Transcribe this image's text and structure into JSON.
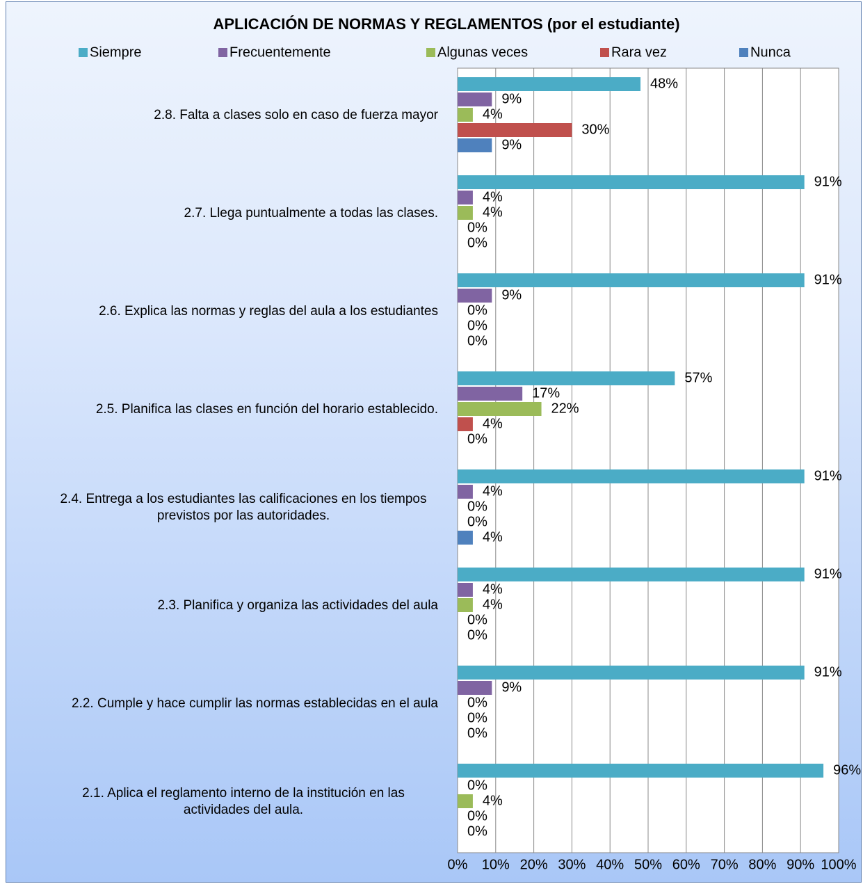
{
  "chart_data": {
    "type": "hbar",
    "title": "APLICACIÓN DE NORMAS Y REGLAMENTOS (por el estudiante)",
    "categories": [
      "2.1.  Aplica el reglamento interno de la institución en las actividades del aula.",
      "2.2.  Cumple y hace cumplir  las normas establecidas en el aula",
      "2.3.  Planifica y organiza las actividades del aula",
      "2.4.  Entrega a los estudiantes las calificaciones en los tiempos previstos por las autoridades.",
      "2.5.  Planifica las clases en función del horario establecido.",
      "2.6.  Explica las normas y reglas del aula a los estudiantes",
      "2.7.  Llega puntualmente a todas las clases.",
      "2.8.  Falta a  clases solo en caso de fuerza mayor"
    ],
    "series": [
      {
        "name": "Siempre",
        "color": "#4bacc6",
        "values": [
          96,
          91,
          91,
          91,
          57,
          91,
          91,
          48
        ],
        "value_labels": [
          "96%",
          "91%",
          "91%",
          "91%",
          "57%",
          "91%",
          "91%",
          "48%"
        ]
      },
      {
        "name": "Frecuentemente",
        "color": "#8064a2",
        "values": [
          0,
          9,
          4,
          4,
          17,
          9,
          4,
          9
        ],
        "value_labels": [
          "0%",
          "9%",
          "4%",
          "4%",
          "17%",
          "9%",
          "4%",
          "9%"
        ]
      },
      {
        "name": "Algunas veces",
        "color": "#9bbb59",
        "values": [
          4,
          0,
          4,
          0,
          22,
          0,
          4,
          4
        ],
        "value_labels": [
          "4%",
          "0%",
          "4%",
          "0%",
          "22%",
          "0%",
          "4%",
          "4%"
        ]
      },
      {
        "name": "Rara vez",
        "color": "#c0504d",
        "values": [
          0,
          0,
          0,
          0,
          4,
          0,
          0,
          30
        ],
        "value_labels": [
          "0%",
          "0%",
          "0%",
          "0%",
          "4%",
          "0%",
          "0%",
          "30%"
        ]
      },
      {
        "name": "Nunca",
        "color": "#4f81bd",
        "values": [
          0,
          0,
          0,
          4,
          0,
          0,
          0,
          9
        ],
        "value_labels": [
          "0%",
          "0%",
          "0%",
          "4%",
          "0%",
          "0%",
          "0%",
          "9%"
        ]
      }
    ],
    "xlim": [
      0,
      100
    ],
    "xticks": [
      {
        "value": 0,
        "label": "0%"
      },
      {
        "value": 10,
        "label": "10%"
      },
      {
        "value": 20,
        "label": "20%"
      },
      {
        "value": 30,
        "label": "30%"
      },
      {
        "value": 40,
        "label": "40%"
      },
      {
        "value": 50,
        "label": "50%"
      },
      {
        "value": 60,
        "label": "60%"
      },
      {
        "value": 70,
        "label": "70%"
      },
      {
        "value": 80,
        "label": "80%"
      },
      {
        "value": 90,
        "label": "90%"
      },
      {
        "value": 100,
        "label": "100%"
      }
    ],
    "grid": true,
    "legend": "top"
  }
}
